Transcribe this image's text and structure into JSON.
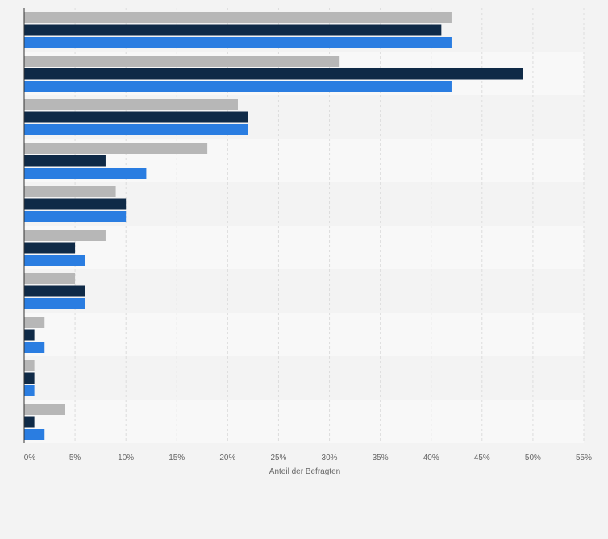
{
  "chart_data": {
    "type": "bar",
    "orientation": "horizontal",
    "categories": [
      "",
      "",
      "",
      "",
      "",
      "",
      "",
      "",
      "",
      ""
    ],
    "series": [
      {
        "color": "#b7b7b7",
        "values": [
          42,
          31,
          21,
          18,
          9,
          8,
          5,
          2,
          1,
          4
        ]
      },
      {
        "color": "#0f2a47",
        "values": [
          41,
          49,
          22,
          8,
          10,
          5,
          6,
          1,
          1,
          1
        ]
      },
      {
        "color": "#2a7de1",
        "values": [
          42,
          42,
          22,
          12,
          10,
          6,
          6,
          2,
          1,
          2
        ]
      }
    ],
    "xlim": [
      0,
      55
    ],
    "x_ticks": [
      0,
      5,
      10,
      15,
      20,
      25,
      30,
      35,
      40,
      45,
      50,
      55
    ],
    "x_tick_labels": [
      "0%",
      "5%",
      "10%",
      "15%",
      "20%",
      "25%",
      "30%",
      "35%",
      "40%",
      "45%",
      "50%",
      "55%"
    ],
    "xlabel": "Anteil der Befragten",
    "grid": true,
    "legend": "none"
  },
  "colors": {
    "background": "#f3f3f3",
    "band_light": "#f8f8f8",
    "band_dark": "#f3f3f3",
    "grid": "#dcdcdc",
    "axis": "#333333"
  }
}
